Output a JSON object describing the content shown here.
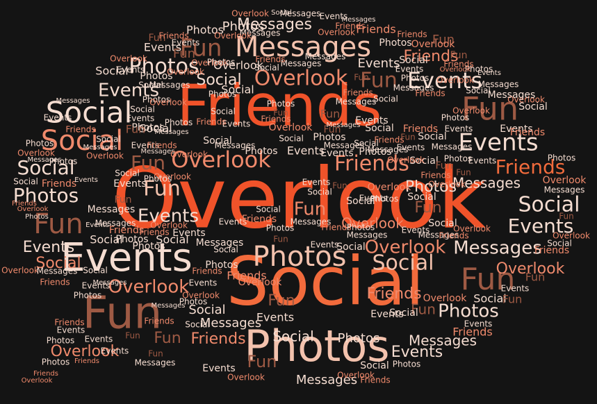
{
  "cloud": {
    "words": [
      "Overlook",
      "Social",
      "Friends",
      "Photos",
      "Events",
      "Fun",
      "Messages"
    ],
    "colors": {
      "orange_red": "#f0532a",
      "orange": "#f26b3c",
      "salmon": "#f08a6c",
      "peach": "#f3c2ad",
      "pale": "#f5ddd1",
      "brown": "#9e5a44",
      "rust": "#c8552f",
      "dark_rust": "#a7472a"
    }
  }
}
